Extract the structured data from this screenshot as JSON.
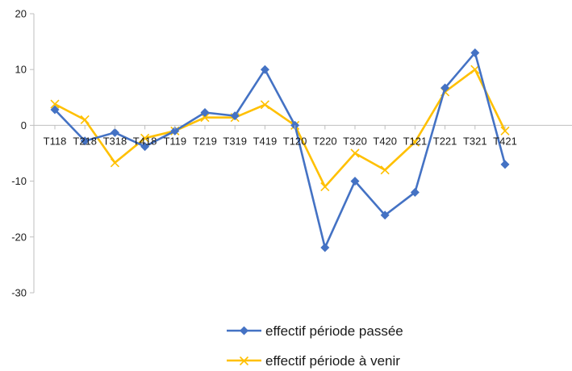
{
  "chart_data": {
    "type": "line",
    "title": "",
    "xlabel": "",
    "ylabel": "",
    "ylim": [
      -30,
      20
    ],
    "yticks": [
      20,
      10,
      0,
      -10,
      -20,
      -30
    ],
    "grid": false,
    "legend_position": "bottom",
    "categories": [
      "T118",
      "T218",
      "T318",
      "T418",
      "T119",
      "T219",
      "T319",
      "T419",
      "T120",
      "T220",
      "T320",
      "T420",
      "T121",
      "T221",
      "T321",
      "T421"
    ],
    "series": [
      {
        "name": "effectif période passée",
        "color": "#4472C4",
        "marker": "diamond",
        "values": [
          2.8,
          -2.8,
          -1.3,
          -3.8,
          -1.0,
          2.3,
          1.7,
          10.0,
          0.0,
          -21.9,
          -10.0,
          -16.1,
          -12.0,
          6.7,
          13.0,
          -7.0
        ]
      },
      {
        "name": "effectif période à venir",
        "color": "#FFC000",
        "marker": "x",
        "values": [
          3.8,
          1.0,
          -6.7,
          -2.3,
          -1.0,
          1.4,
          1.4,
          3.7,
          0.0,
          -11.0,
          -5.0,
          -8.0,
          -3.0,
          6.0,
          10.0,
          -1.0
        ]
      }
    ]
  }
}
